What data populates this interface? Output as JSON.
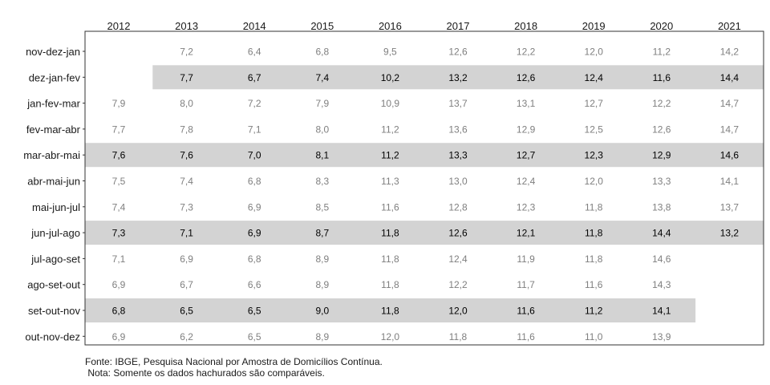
{
  "chart_data": {
    "type": "table",
    "columns": [
      "2012",
      "2013",
      "2014",
      "2015",
      "2016",
      "2017",
      "2018",
      "2019",
      "2020",
      "2021"
    ],
    "rows": [
      "nov-dez-jan",
      "dez-jan-fev",
      "jan-fev-mar",
      "fev-mar-abr",
      "mar-abr-mai",
      "abr-mai-jun",
      "mai-jun-jul",
      "jun-jul-ago",
      "jul-ago-set",
      "ago-set-out",
      "set-out-nov",
      "out-nov-dez"
    ],
    "values": [
      [
        null,
        "7,2",
        "6,4",
        "6,8",
        "9,5",
        "12,6",
        "12,2",
        "12,0",
        "11,2",
        "14,2"
      ],
      [
        null,
        "7,7",
        "6,7",
        "7,4",
        "10,2",
        "13,2",
        "12,6",
        "12,4",
        "11,6",
        "14,4"
      ],
      [
        "7,9",
        "8,0",
        "7,2",
        "7,9",
        "10,9",
        "13,7",
        "13,1",
        "12,7",
        "12,2",
        "14,7"
      ],
      [
        "7,7",
        "7,8",
        "7,1",
        "8,0",
        "11,2",
        "13,6",
        "12,9",
        "12,5",
        "12,6",
        "14,7"
      ],
      [
        "7,6",
        "7,6",
        "7,0",
        "8,1",
        "11,2",
        "13,3",
        "12,7",
        "12,3",
        "12,9",
        "14,6"
      ],
      [
        "7,5",
        "7,4",
        "6,8",
        "8,3",
        "11,3",
        "13,0",
        "12,4",
        "12,0",
        "13,3",
        "14,1"
      ],
      [
        "7,4",
        "7,3",
        "6,9",
        "8,5",
        "11,6",
        "12,8",
        "12,3",
        "11,8",
        "13,8",
        "13,7"
      ],
      [
        "7,3",
        "7,1",
        "6,9",
        "8,7",
        "11,8",
        "12,6",
        "12,1",
        "11,8",
        "14,4",
        "13,2"
      ],
      [
        "7,1",
        "6,9",
        "6,8",
        "8,9",
        "11,8",
        "12,4",
        "11,9",
        "11,8",
        "14,6",
        null
      ],
      [
        "6,9",
        "6,7",
        "6,6",
        "8,9",
        "11,8",
        "12,2",
        "11,7",
        "11,6",
        "14,3",
        null
      ],
      [
        "6,8",
        "6,5",
        "6,5",
        "9,0",
        "11,8",
        "12,0",
        "11,6",
        "11,2",
        "14,1",
        null
      ],
      [
        "6,9",
        "6,2",
        "6,5",
        "8,9",
        "12,0",
        "11,8",
        "11,6",
        "11,0",
        "13,9",
        null
      ]
    ],
    "highlighted_rows": [
      "dez-jan-fev",
      "mar-abr-mai",
      "jun-jul-ago",
      "set-out-nov"
    ],
    "highlight_color": "#d3d3d3",
    "highlighted_text_color": "#000000",
    "normal_text_color": "#7f7f7f"
  },
  "caption": {
    "source": "Fonte: IBGE, Pesquisa Nacional por Amostra de Domicílios Contínua.",
    "note": " Nota: Somente os dados hachurados são comparáveis."
  }
}
